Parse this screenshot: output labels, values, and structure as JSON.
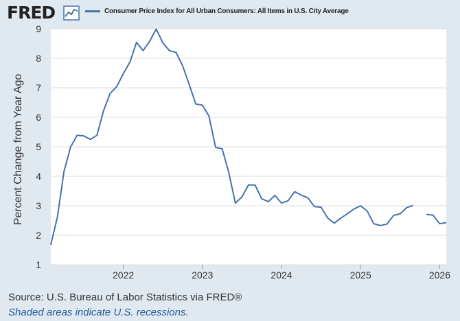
{
  "header": {
    "logo_text": "FRED",
    "logo_icon": "line-chart-icon",
    "legend_label": "Consumer Price Index for All Urban Consumers: All Items in U.S. City Average"
  },
  "colors": {
    "series": "#4572a7",
    "plot_background": "#ffffff",
    "page_background": "#e1e9f0",
    "grid": "#dddddd",
    "note": "#1f5c99"
  },
  "footer": {
    "source": "Source: U.S. Bureau of Labor Statistics via FRED®",
    "note": "Shaded areas indicate U.S. recessions."
  },
  "chart_data": {
    "type": "line",
    "title": "",
    "xlabel": "",
    "ylabel": "Percent Change from Year Ago",
    "ylim": [
      1,
      9
    ],
    "xlim": [
      "2021-02",
      "2026-02"
    ],
    "y_ticks": [
      1,
      2,
      3,
      4,
      5,
      6,
      7,
      8,
      9
    ],
    "x_ticks": [
      "2022",
      "2023",
      "2024",
      "2025",
      "2026"
    ],
    "grid": true,
    "legend": "top",
    "series": [
      {
        "name": "Consumer Price Index for All Urban Consumers: All Items in U.S. City Average",
        "x": [
          "2021-02",
          "2021-03",
          "2021-04",
          "2021-05",
          "2021-06",
          "2021-07",
          "2021-08",
          "2021-09",
          "2021-10",
          "2021-11",
          "2021-12",
          "2022-01",
          "2022-02",
          "2022-03",
          "2022-04",
          "2022-05",
          "2022-06",
          "2022-07",
          "2022-08",
          "2022-09",
          "2022-10",
          "2022-11",
          "2022-12",
          "2023-01",
          "2023-02",
          "2023-03",
          "2023-04",
          "2023-05",
          "2023-06",
          "2023-07",
          "2023-08",
          "2023-09",
          "2023-10",
          "2023-11",
          "2023-12",
          "2024-01",
          "2024-02",
          "2024-03",
          "2024-04",
          "2024-05",
          "2024-06",
          "2024-07",
          "2024-08",
          "2024-09",
          "2024-10",
          "2024-11",
          "2024-12",
          "2025-01",
          "2025-02",
          "2025-03",
          "2025-04",
          "2025-05",
          "2025-06",
          "2025-07",
          "2025-08",
          "2025-09",
          "2025-10",
          "2025-11",
          "2025-12",
          "2026-01",
          "2026-02"
        ],
        "values": [
          1.68,
          2.62,
          4.16,
          4.99,
          5.39,
          5.37,
          5.25,
          5.39,
          6.22,
          6.81,
          7.04,
          7.48,
          7.87,
          8.54,
          8.26,
          8.58,
          8.99,
          8.52,
          8.26,
          8.2,
          7.75,
          7.11,
          6.45,
          6.41,
          6.04,
          4.98,
          4.93,
          4.13,
          3.09,
          3.3,
          3.71,
          3.7,
          3.24,
          3.14,
          3.35,
          3.09,
          3.17,
          3.48,
          3.36,
          3.27,
          2.97,
          2.95,
          2.59,
          2.41,
          2.58,
          2.73,
          2.89,
          3.0,
          2.82,
          2.39,
          2.33,
          2.38,
          2.67,
          2.73,
          2.94,
          3.01,
          null,
          2.71,
          2.68,
          2.39,
          2.43
        ]
      }
    ]
  }
}
